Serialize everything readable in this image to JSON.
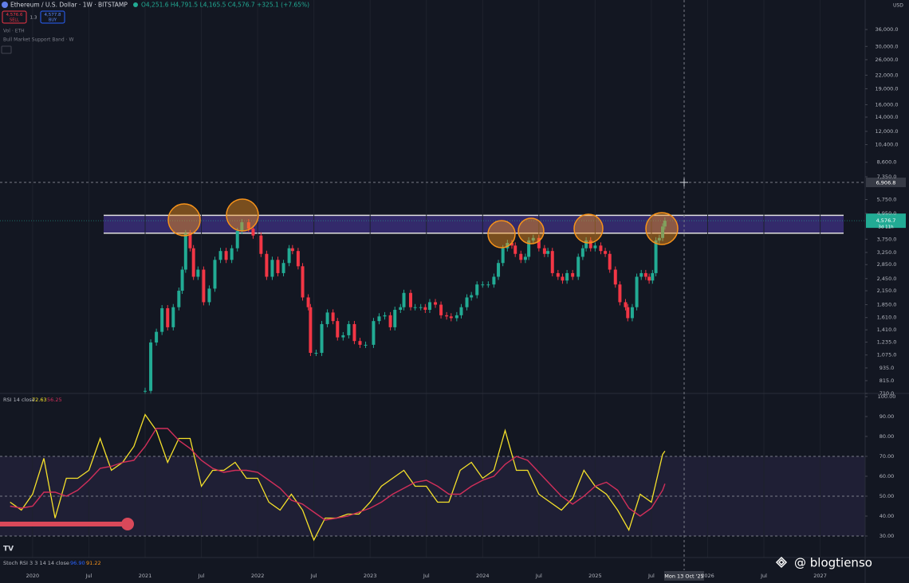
{
  "header": {
    "symbol": "Ethereum / U.S. Dollar · 1W · BITSTAMP",
    "ohlc": "O4,251.6 H4,791.5 L4,165.5 C4,576.7 +325.1 (+7.65%)",
    "sell_price": "4,576.6",
    "sell": "SELL",
    "spread": "1.3",
    "buy_price": "4,577.8",
    "buy": "BUY",
    "indicators": [
      "Vol · ETH",
      "Bull Market Support Band · W"
    ],
    "currency": "USD"
  },
  "chart_data": [
    {
      "type": "candlestick",
      "xlim": [
        2019.71,
        2027.4
      ],
      "xticks": [
        2020,
        {
          "value": 2020.5,
          "label": "Jul"
        },
        2021,
        {
          "value": 2021.5,
          "label": "Jul"
        },
        2022,
        {
          "value": 2022.5,
          "label": "Jul"
        },
        2023,
        {
          "value": 2023.5,
          "label": "Jul"
        },
        2024,
        {
          "value": 2024.5,
          "label": "Jul"
        },
        2025,
        {
          "value": 2025.5,
          "label": "Jul"
        },
        2026,
        {
          "value": 2026.5,
          "label": "Jul"
        },
        2027
      ],
      "ylim": [
        710,
        49500
      ],
      "log_scale": true,
      "yticks": [
        {
          "value": 36000,
          "label": "36,000.0"
        },
        {
          "value": 30000,
          "label": "30,000.0"
        },
        {
          "value": 26000,
          "label": "26,000.0"
        },
        {
          "value": 22000,
          "label": "22,000.0"
        },
        {
          "value": 19000,
          "label": "19,000.0"
        },
        {
          "value": 16000,
          "label": "16,000.0"
        },
        {
          "value": 14000,
          "label": "14,000.0"
        },
        {
          "value": 12000,
          "label": "12,000.0"
        },
        {
          "value": 10400,
          "label": "10,400.0"
        },
        {
          "value": 8600,
          "label": "8,600.0"
        },
        {
          "value": 7350,
          "label": "7,350.0"
        },
        {
          "value": 5750,
          "label": "5,750.0"
        },
        {
          "value": 4950,
          "label": "4,950.0"
        },
        {
          "value": 3750,
          "label": "3,750.0"
        },
        {
          "value": 3250,
          "label": "3,250.0"
        },
        {
          "value": 2850,
          "label": "2,850.0"
        },
        {
          "value": 2450,
          "label": "2,450.0"
        },
        {
          "value": 2150,
          "label": "2,150.0"
        },
        {
          "value": 1850,
          "label": "1,850.0"
        },
        {
          "value": 1610,
          "label": "1,610.0"
        },
        {
          "value": 1410,
          "label": "1,410.0"
        },
        {
          "value": 1235,
          "label": "1,235.0"
        },
        {
          "value": 1075,
          "label": "1,075.0"
        },
        {
          "value": 935,
          "label": "935.0"
        },
        {
          "value": 815,
          "label": "815.0"
        },
        {
          "value": 710,
          "label": "710.0"
        }
      ],
      "x": [
        2021.0,
        2021.05,
        2021.1,
        2021.15,
        2021.2,
        2021.25,
        2021.3,
        2021.33,
        2021.36,
        2021.4,
        2021.43,
        2021.47,
        2021.52,
        2021.57,
        2021.62,
        2021.67,
        2021.72,
        2021.77,
        2021.82,
        2021.86,
        2021.92,
        2021.96,
        2022.03,
        2022.08,
        2022.13,
        2022.18,
        2022.23,
        2022.28,
        2022.31,
        2022.36,
        2022.4,
        2022.45,
        2022.47,
        2022.52,
        2022.57,
        2022.62,
        2022.67,
        2022.71,
        2022.76,
        2022.81,
        2022.86,
        2022.91,
        2022.96,
        2023.03,
        2023.08,
        2023.13,
        2023.18,
        2023.22,
        2023.27,
        2023.3,
        2023.36,
        2023.4,
        2023.45,
        2023.49,
        2023.53,
        2023.58,
        2023.63,
        2023.68,
        2023.72,
        2023.77,
        2023.81,
        2023.86,
        2023.9,
        2023.95,
        2024.0,
        2024.05,
        2024.1,
        2024.14,
        2024.18,
        2024.22,
        2024.26,
        2024.29,
        2024.34,
        2024.38,
        2024.41,
        2024.45,
        2024.5,
        2024.55,
        2024.58,
        2024.62,
        2024.67,
        2024.71,
        2024.75,
        2024.8,
        2024.85,
        2024.89,
        2024.92,
        2024.96,
        2025.0,
        2025.05,
        2025.09,
        2025.13,
        2025.18,
        2025.22,
        2025.27,
        2025.29,
        2025.33,
        2025.37,
        2025.41,
        2025.45,
        2025.48,
        2025.51,
        2025.54,
        2025.57,
        2025.6,
        2025.62
      ],
      "values": [
        730,
        1230,
        1380,
        1780,
        1450,
        1800,
        2150,
        2700,
        4000,
        3400,
        2500,
        2700,
        1900,
        2200,
        3000,
        3300,
        3000,
        3400,
        4100,
        4500,
        4200,
        3900,
        3200,
        2500,
        3000,
        2600,
        2900,
        3400,
        3300,
        2800,
        2000,
        1800,
        1100,
        1100,
        1500,
        1700,
        1550,
        1300,
        1330,
        1500,
        1250,
        1200,
        1200,
        1550,
        1630,
        1650,
        1450,
        1750,
        1800,
        2100,
        1800,
        1800,
        1800,
        1750,
        1900,
        1850,
        1650,
        1630,
        1600,
        1650,
        1800,
        2000,
        2050,
        2300,
        2300,
        2300,
        2500,
        2900,
        3400,
        3600,
        3500,
        3200,
        3000,
        3100,
        3700,
        3800,
        3400,
        3200,
        3300,
        2600,
        2500,
        2400,
        2600,
        2500,
        3100,
        3400,
        3700,
        3400,
        3500,
        3300,
        3200,
        2700,
        2300,
        1900,
        1800,
        1600,
        1800,
        2500,
        2600,
        2500,
        2400,
        2600,
        3700,
        3800,
        4300,
        4576.7
      ],
      "up_color": "#22ab94",
      "down_color": "#f23645",
      "band": [
        4000,
        4850
      ],
      "band_color": "#3a2e78",
      "last_price_label": "4,576.7",
      "countdown": "3d 11h"
    },
    {
      "type": "line",
      "title": "RSI 14 close",
      "ylim": [
        19.2,
        101.6
      ],
      "yticks": [
        {
          "value": 100,
          "label": "100.00"
        },
        {
          "value": 90,
          "label": "90.00"
        },
        {
          "value": 80,
          "label": "80.00"
        },
        {
          "value": 70,
          "label": "70.00"
        },
        {
          "value": 60,
          "label": "60.00"
        },
        {
          "value": 50,
          "label": "50.00"
        },
        {
          "value": 40,
          "label": "40.00"
        },
        {
          "value": 30,
          "label": "30.00"
        }
      ],
      "band": [
        30,
        70
      ],
      "levels": [
        70,
        50,
        30
      ],
      "x": [
        2019.8,
        2019.9,
        2020.0,
        2020.1,
        2020.2,
        2020.3,
        2020.4,
        2020.5,
        2020.6,
        2020.7,
        2020.8,
        2020.9,
        2021.0,
        2021.1,
        2021.2,
        2021.3,
        2021.4,
        2021.5,
        2021.6,
        2021.7,
        2021.8,
        2021.9,
        2022.0,
        2022.1,
        2022.2,
        2022.3,
        2022.4,
        2022.5,
        2022.6,
        2022.7,
        2022.8,
        2022.9,
        2023.0,
        2023.1,
        2023.2,
        2023.3,
        2023.4,
        2023.5,
        2023.6,
        2023.7,
        2023.8,
        2023.9,
        2024.0,
        2024.1,
        2024.2,
        2024.3,
        2024.4,
        2024.5,
        2024.6,
        2024.7,
        2024.8,
        2024.9,
        2025.0,
        2025.1,
        2025.2,
        2025.3,
        2025.4,
        2025.5,
        2025.6,
        2025.62
      ],
      "series": [
        {
          "color": "#f5e12a",
          "values": [
            47,
            43,
            51,
            69,
            39,
            59,
            59,
            63,
            79,
            63,
            67,
            75,
            91,
            83,
            67,
            79,
            79,
            55,
            63,
            63,
            67,
            59,
            59,
            47,
            43,
            51,
            43,
            28,
            39,
            39,
            41,
            41,
            47,
            55,
            59,
            63,
            55,
            55,
            47,
            47,
            63,
            67,
            59,
            63,
            83,
            63,
            63,
            51,
            47,
            43,
            49,
            63,
            55,
            51,
            43,
            33,
            51,
            47,
            71,
            72.63
          ]
        },
        {
          "color": "#d12f5a",
          "values": [
            45,
            44,
            45,
            52,
            52,
            50,
            53,
            58,
            64,
            65,
            67,
            68,
            75,
            84,
            84,
            78,
            74,
            68,
            64,
            62,
            63,
            63,
            62,
            58,
            54,
            48,
            46,
            42,
            38,
            39,
            40,
            42,
            44,
            47,
            51,
            54,
            57,
            58,
            55,
            51,
            51,
            55,
            58,
            60,
            66,
            70,
            68,
            62,
            56,
            50,
            46,
            50,
            55,
            57,
            53,
            44,
            40,
            44,
            53,
            56.25
          ]
        }
      ]
    }
  ],
  "stoch_rsi": {
    "label": "Stoch RSI 3 3 14 14 close",
    "k": "96.90",
    "d": "91.22"
  },
  "crosshair": {
    "price": "6,906.8",
    "date": "Mon 13 Oct '25"
  },
  "watermark": "@ blogtienso"
}
